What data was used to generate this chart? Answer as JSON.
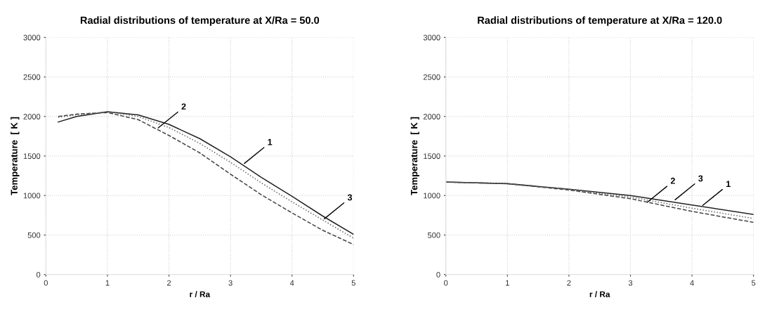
{
  "chart_data": [
    {
      "type": "line",
      "title": "Radial distributions of temperature at X/Ra = 50.0",
      "xlabel": "r / Ra",
      "ylabel": "Temperature  [ K ]",
      "xlim": [
        0,
        5
      ],
      "ylim": [
        0,
        3000
      ],
      "xticks": [
        0,
        1,
        2,
        3,
        4,
        5
      ],
      "yticks": [
        0,
        500,
        1000,
        1500,
        2000,
        2500,
        3000
      ],
      "grid": true,
      "marker": "none",
      "series": [
        {
          "color": "#222222",
          "line_style": "solid",
          "x": [
            0.2,
            0.5,
            1.0,
            1.5,
            2.0,
            2.5,
            3.0,
            3.5,
            4.0,
            4.5,
            5.0
          ],
          "values": [
            1930,
            2000,
            2060,
            2020,
            1900,
            1720,
            1490,
            1230,
            990,
            740,
            510
          ]
        },
        {
          "color": "#444444",
          "line_style": "dashed",
          "x": [
            0.2,
            0.5,
            1.0,
            1.5,
            2.0,
            2.5,
            3.0,
            3.5,
            4.0,
            4.5,
            5.0
          ],
          "values": [
            2000,
            2030,
            2050,
            1960,
            1760,
            1540,
            1270,
            1010,
            780,
            560,
            380
          ]
        },
        {
          "color": "#666666",
          "line_style": "dotted",
          "x": [
            0.2,
            0.5,
            1.0,
            1.5,
            2.0,
            2.5,
            3.0,
            3.5,
            4.0,
            4.5,
            5.0
          ],
          "values": [
            1990,
            2020,
            2060,
            2000,
            1860,
            1660,
            1420,
            1160,
            920,
            690,
            460
          ]
        }
      ],
      "annotations": [
        {
          "text": "2",
          "x": 1.8,
          "y": 1840
        },
        {
          "text": "1",
          "x": 3.2,
          "y": 1390
        },
        {
          "text": "3",
          "x": 4.5,
          "y": 690
        }
      ]
    },
    {
      "type": "line",
      "title": "Radial distributions of temperature at X/Ra = 120.0",
      "xlabel": "r / Ra",
      "ylabel": "Temperature  [ K ]",
      "xlim": [
        0,
        5
      ],
      "ylim": [
        0,
        3000
      ],
      "xticks": [
        0,
        1,
        2,
        3,
        4,
        5
      ],
      "yticks": [
        0,
        500,
        1000,
        1500,
        2000,
        2500,
        3000
      ],
      "grid": true,
      "marker": "none",
      "series": [
        {
          "color": "#222222",
          "line_style": "solid",
          "x": [
            0,
            1,
            2,
            3,
            4,
            5
          ],
          "values": [
            1170,
            1150,
            1080,
            1000,
            880,
            760
          ]
        },
        {
          "color": "#444444",
          "line_style": "dashed",
          "x": [
            0,
            1,
            2,
            3,
            4,
            5
          ],
          "values": [
            1170,
            1150,
            1070,
            960,
            800,
            660
          ]
        },
        {
          "color": "#666666",
          "line_style": "dotted",
          "x": [
            0,
            1,
            2,
            3,
            4,
            5
          ],
          "values": [
            1170,
            1150,
            1080,
            980,
            840,
            710
          ]
        }
      ],
      "annotations": [
        {
          "text": "2",
          "x": 3.25,
          "y": 900
        },
        {
          "text": "3",
          "x": 3.7,
          "y": 930
        },
        {
          "text": "1",
          "x": 4.15,
          "y": 860
        }
      ]
    }
  ]
}
